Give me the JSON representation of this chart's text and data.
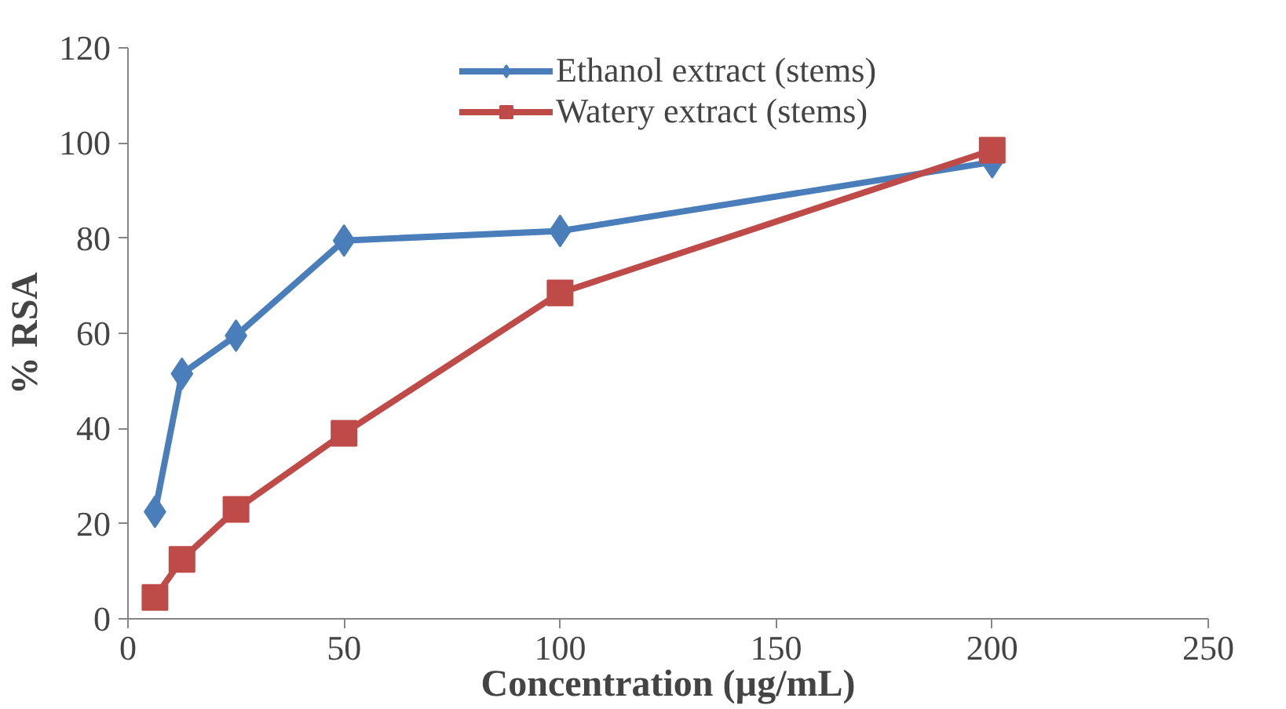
{
  "chart_data": {
    "type": "line",
    "xlabel": "Concentration (µg/mL)",
    "ylabel": "% RSA",
    "x": [
      6.25,
      12.5,
      25,
      50,
      100,
      200
    ],
    "series": [
      {
        "name": "Ethanol extract (stems)",
        "color": "#4a7ebb",
        "marker": "diamond",
        "values": [
          22.5,
          51.5,
          59.5,
          79.5,
          81.5,
          96
        ]
      },
      {
        "name": "Watery extract (stems)",
        "color": "#be4b48",
        "marker": "square",
        "values": [
          4.5,
          12.5,
          23,
          39,
          68.5,
          98.5
        ]
      }
    ],
    "xlim": [
      0,
      250
    ],
    "xticks": [
      0,
      50,
      100,
      150,
      200,
      250
    ],
    "ylim": [
      0,
      120
    ],
    "yticks": [
      0,
      20,
      40,
      60,
      80,
      100,
      120
    ],
    "grid": false,
    "legend": "top",
    "line_style": "solid"
  }
}
